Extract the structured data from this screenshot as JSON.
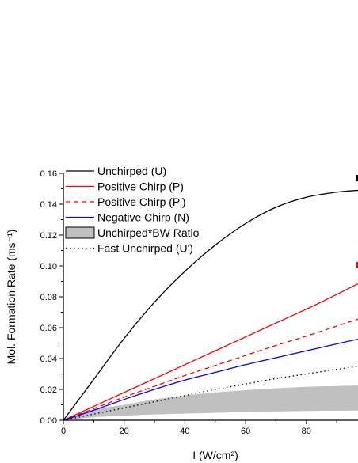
{
  "chart_data": {
    "type": "line",
    "xlabel": "I (W/cm²)",
    "ylabel": "Mol. Formation Rate (ms⁻¹)",
    "xlim": [
      0,
      97
    ],
    "ylim": [
      0,
      0.16
    ],
    "x_ticks": [
      "0",
      "20",
      "40",
      "60",
      "80"
    ],
    "y_ticks": [
      "0.00",
      "0.02",
      "0.04",
      "0.06",
      "0.08",
      "0.10",
      "0.12",
      "0.14",
      "0.16"
    ],
    "legend_position": "top-left",
    "grid": false,
    "x": [
      0,
      10,
      20,
      30,
      40,
      50,
      60,
      70,
      80,
      90,
      97
    ],
    "series": [
      {
        "name": "Unchirped (U)",
        "color": "#000000",
        "style": "solid",
        "values": [
          0,
          0.0265,
          0.053,
          0.0765,
          0.0965,
          0.1135,
          0.1275,
          0.138,
          0.1445,
          0.1478,
          0.149
        ]
      },
      {
        "name": "Positive Chirp (P)",
        "color": "#ff0000",
        "style": "solid",
        "values": [
          0,
          0.009,
          0.018,
          0.027,
          0.036,
          0.045,
          0.054,
          0.063,
          0.072,
          0.0815,
          0.0885
        ]
      },
      {
        "name": "Positive Chirp (P')",
        "color": "#ff0000",
        "style": "dashed",
        "values": [
          0,
          0.0075,
          0.015,
          0.022,
          0.029,
          0.0355,
          0.042,
          0.0485,
          0.0545,
          0.061,
          0.0655
        ]
      },
      {
        "name": "Negative Chirp (N)",
        "color": "#0000ff",
        "style": "solid",
        "values": [
          0,
          0.0065,
          0.0135,
          0.02,
          0.026,
          0.031,
          0.036,
          0.0405,
          0.045,
          0.0495,
          0.0525
        ]
      },
      {
        "name": "Fast Unchirped (U')",
        "color": "#000000",
        "style": "dotted",
        "values": [
          0,
          0.004,
          0.008,
          0.012,
          0.016,
          0.02,
          0.0235,
          0.027,
          0.03,
          0.033,
          0.035
        ]
      }
    ],
    "band": {
      "name": "Unchirped*BW Ratio",
      "color": "#c0c0c0",
      "lower": [
        0,
        0.002,
        0.003,
        0.0038,
        0.0043,
        0.0048,
        0.0053,
        0.0057,
        0.006,
        0.0062,
        0.0063
      ],
      "upper": [
        0,
        0.007,
        0.01,
        0.0135,
        0.016,
        0.018,
        0.0195,
        0.0207,
        0.0217,
        0.0222,
        0.0225
      ]
    }
  }
}
